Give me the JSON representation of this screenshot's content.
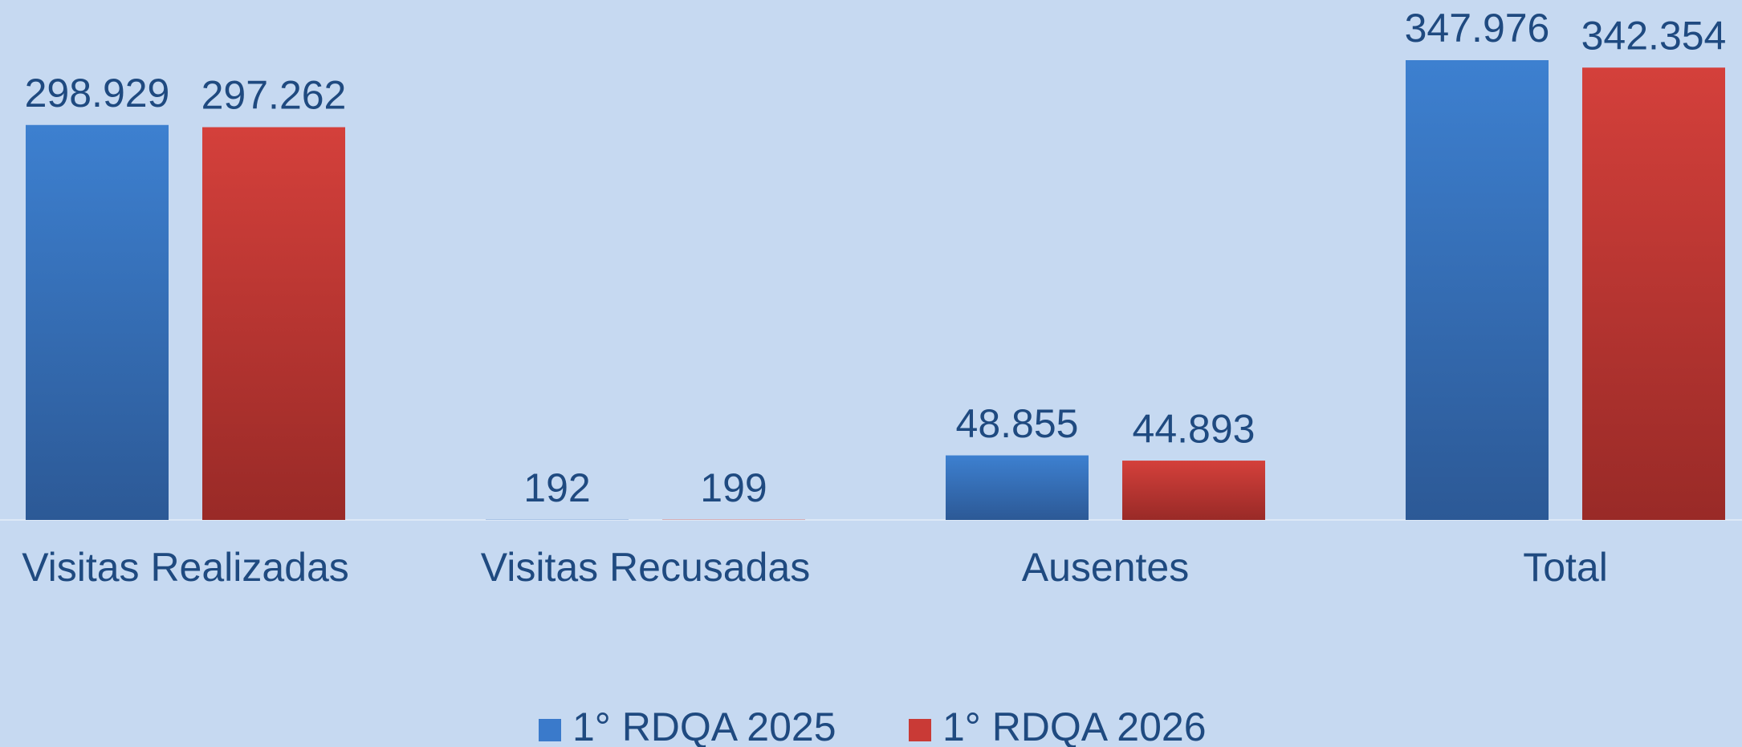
{
  "chart_data": {
    "type": "bar",
    "categories": [
      "Visitas Realizadas",
      "Visitas Recusadas",
      "Ausentes",
      "Total"
    ],
    "series": [
      {
        "name": "1° RDQA 2025",
        "color": "#3a7acb",
        "values": [
          298929,
          192,
          48855,
          347976
        ],
        "value_labels": [
          "298.929",
          "192",
          "48.855",
          "347.976"
        ]
      },
      {
        "name": "1° RDQA 2026",
        "color": "#c93a36",
        "values": [
          297262,
          199,
          44893,
          342354
        ],
        "value_labels": [
          "297.262",
          "199",
          "44.893",
          "342.354"
        ]
      }
    ]
  }
}
